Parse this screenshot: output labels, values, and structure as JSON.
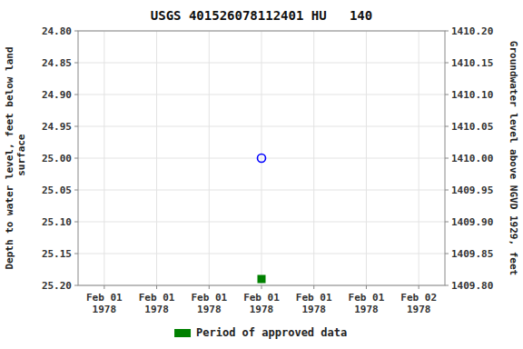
{
  "chart_data": {
    "type": "scatter",
    "title": "USGS 401526078112401 HU   140",
    "y_label": "Depth to water level, feet below land\n surface",
    "y2_label": "Groundwater level above NGVD 1929, feet",
    "categories": [
      "Feb 01\n1978",
      "Feb 01\n1978",
      "Feb 01\n1978",
      "Feb 01\n1978",
      "Feb 01\n1978",
      "Feb 01\n1978",
      "Feb 02\n1978"
    ],
    "series": [
      {
        "color": "#0000ff",
        "marker": "circle",
        "values": [
          null,
          null,
          null,
          25.0,
          null,
          null,
          null
        ]
      },
      {
        "name": "Period of approved data",
        "color": "#008000",
        "marker": "square",
        "values": [
          null,
          null,
          null,
          25.19,
          null,
          null,
          null
        ]
      }
    ],
    "ylim": [
      25.2,
      24.8
    ],
    "yticks": [
      {
        "value": 24.8,
        "label": "24.80"
      },
      {
        "value": 24.85,
        "label": "24.85"
      },
      {
        "value": 24.9,
        "label": "24.90"
      },
      {
        "value": 24.95,
        "label": "24.95"
      },
      {
        "value": 25.0,
        "label": "25.00"
      },
      {
        "value": 25.05,
        "label": "25.05"
      },
      {
        "value": 25.1,
        "label": "25.10"
      },
      {
        "value": 25.15,
        "label": "25.15"
      },
      {
        "value": 25.2,
        "label": "25.20"
      }
    ],
    "y2lim": [
      1409.8,
      1410.2
    ],
    "y2ticks": [
      {
        "value": 1410.2,
        "label": "1410.20"
      },
      {
        "value": 1410.15,
        "label": "1410.15"
      },
      {
        "value": 1410.1,
        "label": "1410.10"
      },
      {
        "value": 1410.05,
        "label": "1410.05"
      },
      {
        "value": 1410.0,
        "label": "1410.00"
      },
      {
        "value": 1409.95,
        "label": "1409.95"
      },
      {
        "value": 1409.9,
        "label": "1409.90"
      },
      {
        "value": 1409.85,
        "label": "1409.85"
      },
      {
        "value": 1409.8,
        "label": "1409.80"
      }
    ],
    "grid": true,
    "legend": "bottom"
  }
}
